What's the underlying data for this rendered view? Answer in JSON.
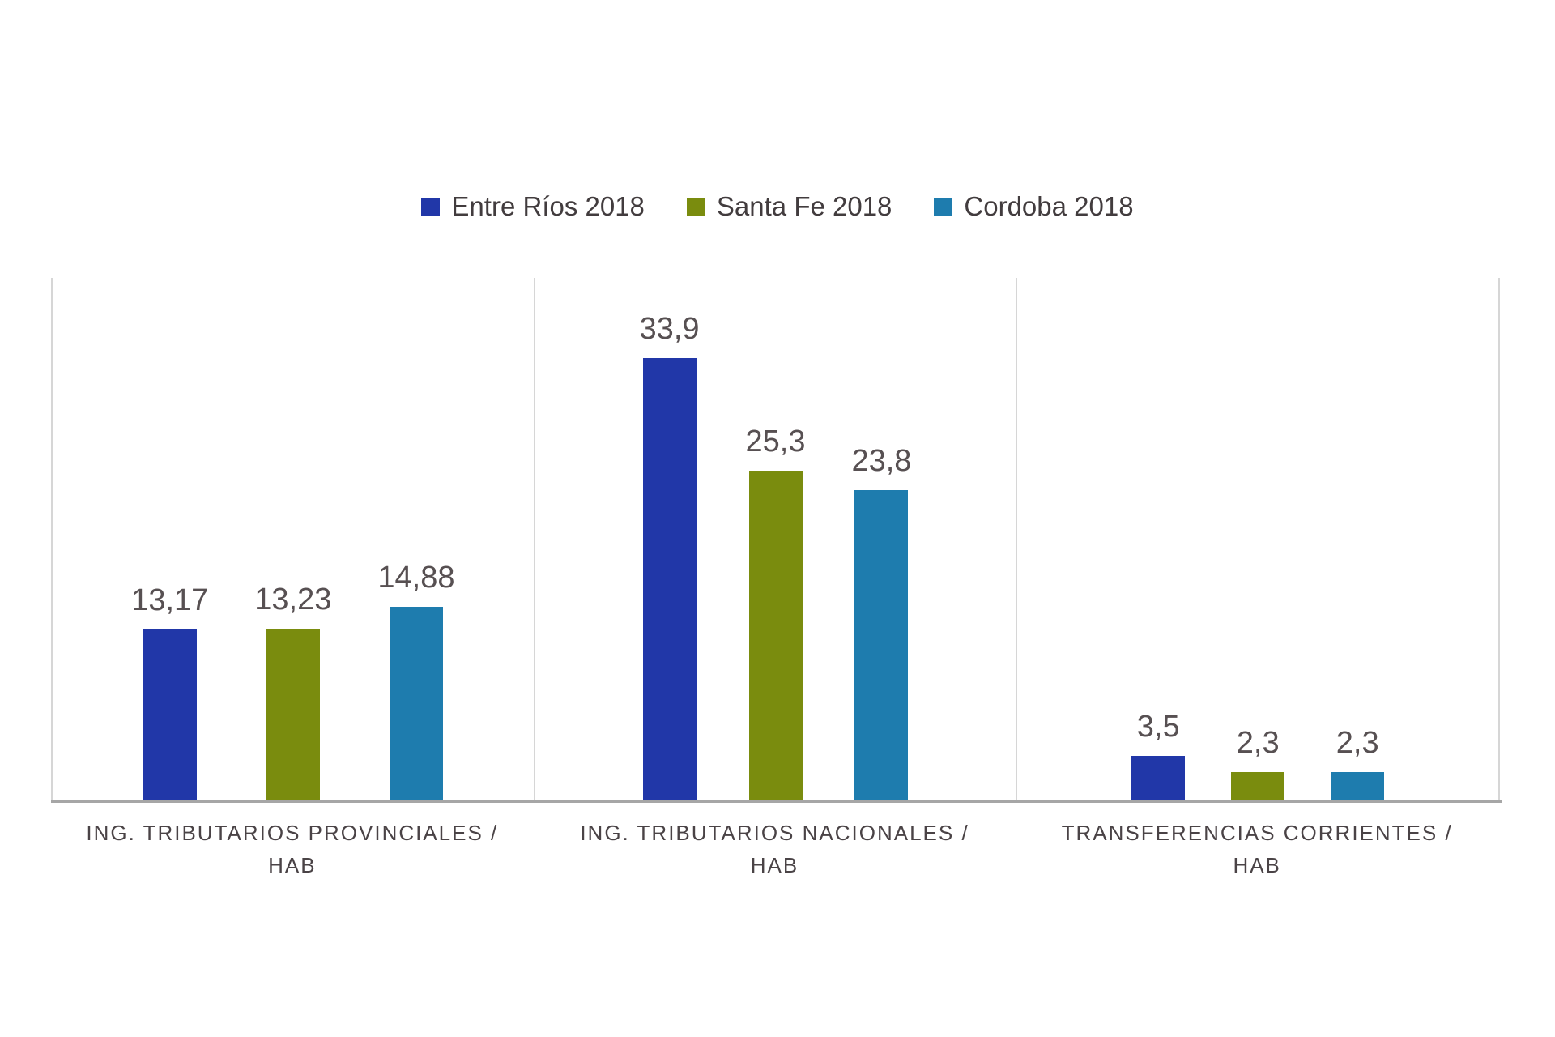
{
  "page": {
    "background": "#ffffff"
  },
  "legend": {
    "position": "top-center",
    "items": [
      {
        "label": "Entre Ríos 2018",
        "color": "#2137A8"
      },
      {
        "label": "Santa Fe 2018",
        "color": "#7A8C0E"
      },
      {
        "label": "Cordoba 2018",
        "color": "#1E7CAE"
      }
    ]
  },
  "chart_data": {
    "type": "bar",
    "title": "",
    "xlabel": "",
    "ylabel": "",
    "ylim": [
      0,
      40
    ],
    "grid": "vertical panel separators only, no horizontal gridlines, no y-axis ticks",
    "legend_position": "top-center",
    "value_label_decimal_separator": ",",
    "categories": [
      "ING. TRIBUTARIOS PROVINCIALES / HAB",
      "ING. TRIBUTARIOS NACIONALES / HAB",
      "TRANSFERENCIAS CORRIENTES / HAB"
    ],
    "category_lines": [
      [
        "ING. TRIBUTARIOS PROVINCIALES /",
        "HAB"
      ],
      [
        "ING. TRIBUTARIOS NACIONALES /",
        "HAB"
      ],
      [
        "TRANSFERENCIAS CORRIENTES /",
        "HAB"
      ]
    ],
    "series": [
      {
        "name": "Entre Ríos 2018",
        "color": "#2137A8",
        "values": [
          13.17,
          33.9,
          3.5
        ],
        "labels": [
          "13,17",
          "33,9",
          "3,5"
        ]
      },
      {
        "name": "Santa Fe 2018",
        "color": "#7A8C0E",
        "values": [
          13.23,
          25.3,
          2.3
        ],
        "labels": [
          "13,23",
          "25,3",
          "2,3"
        ]
      },
      {
        "name": "Cordoba 2018",
        "color": "#1E7CAE",
        "values": [
          14.88,
          23.8,
          2.3
        ],
        "labels": [
          "14,88",
          "23,8",
          "2,3"
        ]
      }
    ],
    "axis_line_color": "#A6A6A6",
    "separator_line_color": "#D6D6D6"
  }
}
